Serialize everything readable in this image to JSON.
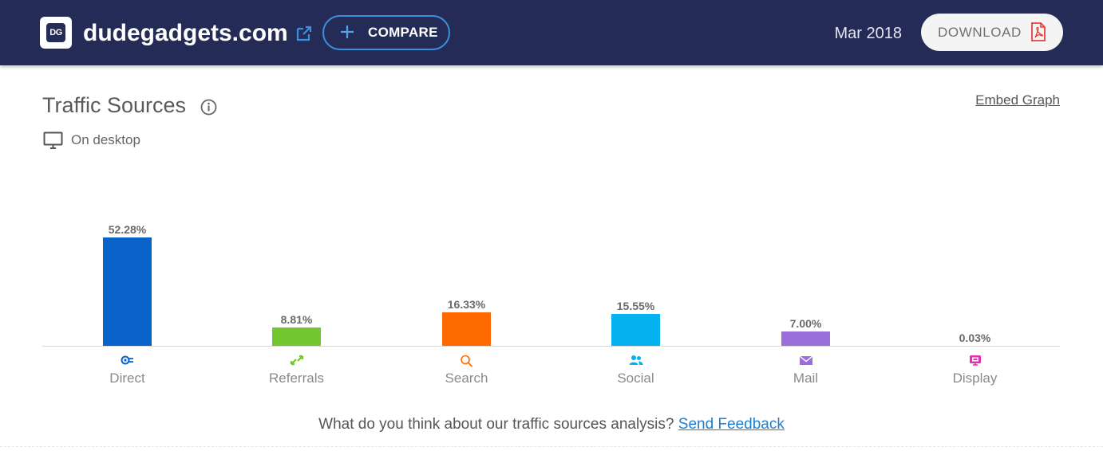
{
  "header": {
    "logo_text": "DG",
    "site_name": "dudegadgets.com",
    "compare_label": "COMPARE",
    "date": "Mar 2018",
    "download_label": "DOWNLOAD",
    "bg_color": "#232b56"
  },
  "section": {
    "title": "Traffic Sources",
    "embed_link": "Embed Graph",
    "device_label": "On desktop"
  },
  "chart_data": {
    "type": "bar",
    "categories": [
      "Direct",
      "Referrals",
      "Search",
      "Social",
      "Mail",
      "Display"
    ],
    "values": [
      52.28,
      8.81,
      16.33,
      15.55,
      7.0,
      0.03
    ],
    "value_labels": [
      "52.28%",
      "8.81%",
      "16.33%",
      "15.55%",
      "7.00%",
      "0.03%"
    ],
    "colors": [
      "#0a63c9",
      "#72c72f",
      "#ff6a00",
      "#05b2ef",
      "#9a6fdb",
      "#e52fae"
    ],
    "icons": [
      "direct-plug-icon",
      "referrals-arrows-icon",
      "search-icon",
      "social-users-icon",
      "mail-envelope-icon",
      "display-ad-icon"
    ],
    "ylim": [
      0,
      52.28
    ],
    "grid": false,
    "title": "",
    "xlabel": "",
    "ylabel": ""
  },
  "feedback": {
    "question": "What do you think about our traffic sources analysis?",
    "link": "Send Feedback"
  }
}
